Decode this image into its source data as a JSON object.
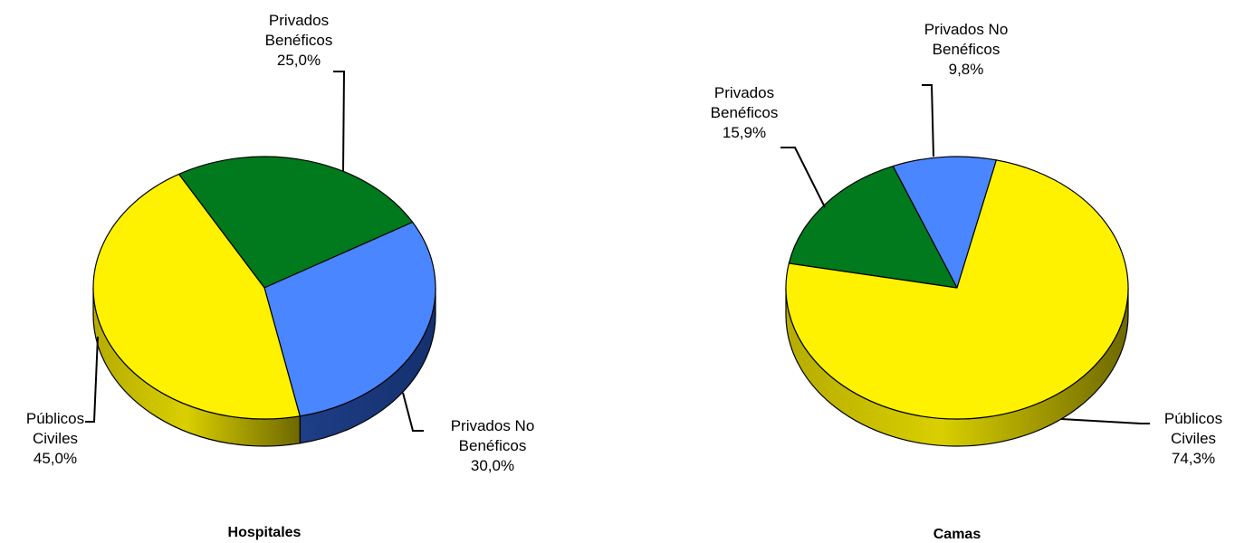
{
  "colors": {
    "Privados Beneficos": "#007A1C",
    "Privados No Beneficos": "#4A86FF",
    "Publicos Civiles": "#FFF200",
    "outline": "#000000"
  },
  "chart_data": [
    {
      "type": "pie",
      "title": "Hospitales",
      "slices": [
        {
          "key": "Privados Beneficos",
          "label_lines": [
            "Privados",
            "Benéficos",
            "25,0%"
          ],
          "value": 25.0
        },
        {
          "key": "Privados No Beneficos",
          "label_lines": [
            "Privados No",
            "Benéficos",
            "30,0%"
          ],
          "value": 30.0
        },
        {
          "key": "Publicos Civiles",
          "label_lines": [
            "Públicos",
            "Civiles",
            "45,0%"
          ],
          "value": 45.0
        }
      ]
    },
    {
      "type": "pie",
      "title": "Camas",
      "slices": [
        {
          "key": "Privados No Beneficos",
          "label_lines": [
            "Privados No",
            "Benéficos",
            "9,8%"
          ],
          "value": 9.8
        },
        {
          "key": "Publicos Civiles",
          "label_lines": [
            "Públicos",
            "Civiles",
            "74,3%"
          ],
          "value": 74.3
        },
        {
          "key": "Privados Beneficos",
          "label_lines": [
            "Privados",
            "Benéficos",
            "15,9%"
          ],
          "value": 15.9
        }
      ]
    }
  ]
}
